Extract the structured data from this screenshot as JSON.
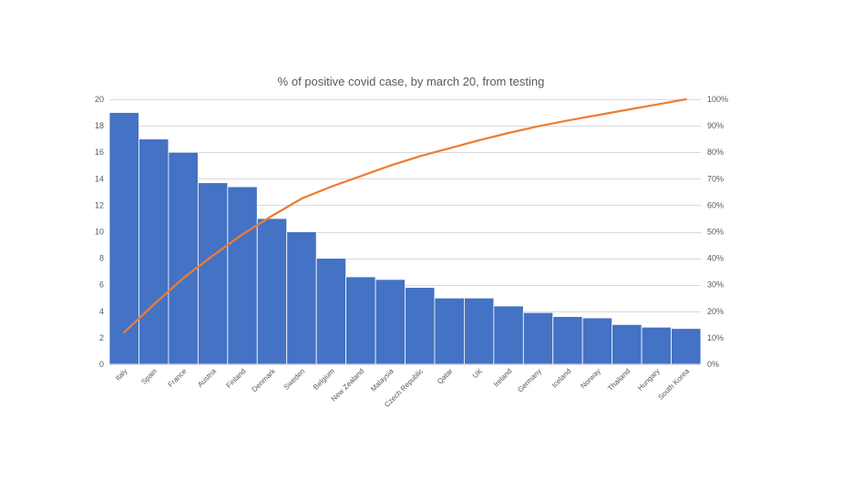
{
  "chart_data": {
    "type": "bar",
    "title": "% of positive covid case, by march 20, from testing",
    "xlabel": "",
    "ylabel": "",
    "categories": [
      "Italy",
      "Spain",
      "France",
      "Austria",
      "Finland",
      "Denmark",
      "Sweden",
      "Belgium",
      "New Zealand",
      "Malaysia",
      "Czech Republic",
      "Qatar",
      "UK",
      "Ireland",
      "Germany",
      "Iceland",
      "Norway",
      "Thailand",
      "Hungary",
      "South Korea"
    ],
    "series": [
      {
        "type": "bar",
        "values": [
          19.0,
          17.0,
          16.0,
          13.7,
          13.4,
          11.0,
          10.0,
          8.0,
          6.6,
          6.4,
          5.8,
          5.0,
          5.0,
          4.4,
          3.9,
          3.6,
          3.5,
          3.0,
          2.8,
          2.7
        ],
        "color": "#4472C4",
        "axis": "left"
      },
      {
        "type": "line",
        "values": [
          12.0,
          22.5,
          32.5,
          41.0,
          49.0,
          56.0,
          62.5,
          67.0,
          71.0,
          75.0,
          78.5,
          81.5,
          84.5,
          87.3,
          89.8,
          92.0,
          94.0,
          96.0,
          98.0,
          100.0
        ],
        "color": "#ED7D31",
        "axis": "right",
        "unit": "%"
      }
    ],
    "ylim": [
      0,
      20
    ],
    "y_ticks": [
      "0",
      "2",
      "4",
      "6",
      "8",
      "10",
      "12",
      "14",
      "16",
      "18",
      "20"
    ],
    "y2lim": [
      0,
      100
    ],
    "y2_ticks": [
      "0%",
      "10%",
      "20%",
      "30%",
      "40%",
      "50%",
      "60%",
      "70%",
      "80%",
      "90%",
      "100%"
    ],
    "grid": true,
    "legend": "none",
    "gridline_color": "#D9D9D9",
    "text_color": "#595959"
  }
}
